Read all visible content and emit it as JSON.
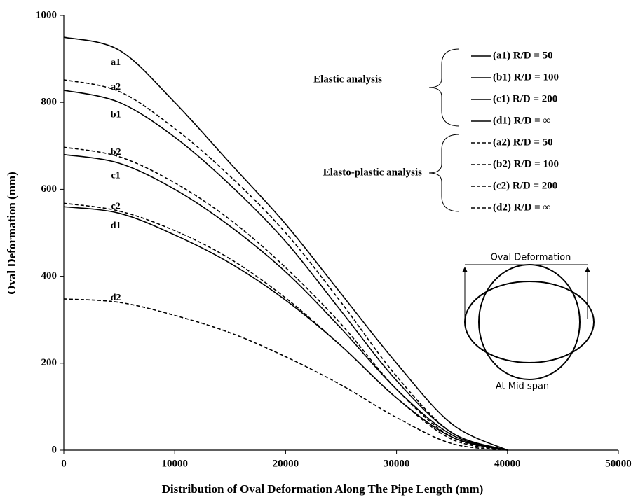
{
  "chart_data": {
    "type": "line",
    "x_label": "Distribution of Oval Deformation Along The Pipe Length (mm)",
    "y_label": "Oval Deformation (mm)",
    "x": [
      0,
      5000,
      10000,
      15000,
      20000,
      25000,
      30000,
      35000,
      40000
    ],
    "series": [
      {
        "name": "(a1) R/D = 50",
        "label": "a1",
        "color": "#000000",
        "dashed": false,
        "values": [
          950,
          920,
          800,
          660,
          520,
          360,
          200,
          60,
          0
        ]
      },
      {
        "name": "(b1) R/D = 100",
        "label": "b1",
        "color": "#000000",
        "dashed": false,
        "values": [
          828,
          800,
          720,
          610,
          480,
          320,
          160,
          40,
          0
        ]
      },
      {
        "name": "(c1) R/D = 200",
        "label": "c1",
        "color": "#000000",
        "dashed": false,
        "values": [
          680,
          660,
          600,
          515,
          410,
          280,
          140,
          35,
          0
        ]
      },
      {
        "name": "(d1) R/D = ∞",
        "label": "d1",
        "color": "#000000",
        "dashed": false,
        "values": [
          560,
          545,
          495,
          430,
          345,
          240,
          120,
          30,
          0
        ]
      },
      {
        "name": "(a2) R/D = 50",
        "label": "a2",
        "color": "#000000",
        "dashed": true,
        "values": [
          852,
          825,
          740,
          630,
          500,
          340,
          170,
          40,
          0
        ]
      },
      {
        "name": "(b2) R/D = 100",
        "label": "b2",
        "color": "#000000",
        "dashed": true,
        "values": [
          697,
          675,
          615,
          530,
          420,
          290,
          140,
          30,
          0
        ]
      },
      {
        "name": "(c2) R/D = 200",
        "label": "c2",
        "color": "#000000",
        "dashed": true,
        "values": [
          568,
          550,
          505,
          440,
          350,
          240,
          120,
          25,
          0
        ]
      },
      {
        "name": "(d2) R/D = ∞",
        "label": "d2",
        "color": "#000000",
        "dashed": true,
        "values": [
          348,
          340,
          310,
          270,
          215,
          150,
          75,
          15,
          0
        ]
      }
    ],
    "legend_groups": [
      "Elastic analysis",
      "Elasto-plastic analysis"
    ],
    "inset_labels": [
      "Oval Deformation",
      "At Mid span"
    ],
    "xlim": [
      0,
      50000
    ],
    "xticks": [
      0,
      10000,
      20000,
      30000,
      40000,
      50000
    ],
    "ylim": [
      0,
      1000
    ],
    "yticks": [
      0,
      200,
      400,
      600,
      800,
      1000
    ],
    "grid": false
  }
}
